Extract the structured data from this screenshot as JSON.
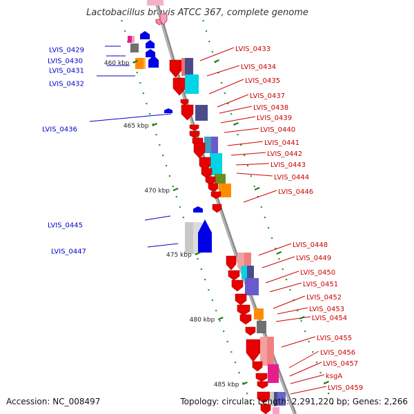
{
  "title": "Lactobacillus brevis ATCC 367, complete genome",
  "accession": "Accession: NC_008497",
  "stats": "Topology: circular; Length: 2,291,220 bp; Genes: 2,266",
  "colors": {
    "backbone": "#8c8c8c",
    "kbp_tick": "#1a7a1a",
    "label_forward": "#0000cc",
    "label_reverse": "#cc0000",
    "cds_red": "#e60000",
    "cds_blue": "#0000e6",
    "cyan": "#00d4e6",
    "pink": "#f08080",
    "purple": "#6a5acd",
    "dark_slate": "#4b4b8c",
    "orange": "#ff8c00",
    "gray": "#707070",
    "olive": "#6b8e23",
    "magenta": "#e61e8c"
  },
  "kbp_marks": [
    "460 kbp",
    "465 kbp",
    "470 kbp",
    "475 kbp",
    "480 kbp",
    "485 kbp"
  ],
  "forward_labels": [
    "LVIS_0429",
    "LVIS_0430",
    "LVIS_0431",
    "LVIS_0432",
    "LVIS_0436",
    "LVIS_0445",
    "LVIS_0447"
  ],
  "reverse_labels": [
    "LVIS_0433",
    "LVIS_0434",
    "LVIS_0435",
    "LVIS_0437",
    "LVIS_0438",
    "LVIS_0439",
    "LVIS_0440",
    "LVIS_0441",
    "LVIS_0442",
    "LVIS_0443",
    "LVIS_0444",
    "LVIS_0446",
    "LVIS_0448",
    "LVIS_0449",
    "LVIS_0450",
    "LVIS_0451",
    "LVIS_0452",
    "LVIS_0453",
    "LVIS_0454",
    "LVIS_0455",
    "LVIS_0456",
    "LVIS_0457",
    "ksgA",
    "LVIS_0459"
  ]
}
